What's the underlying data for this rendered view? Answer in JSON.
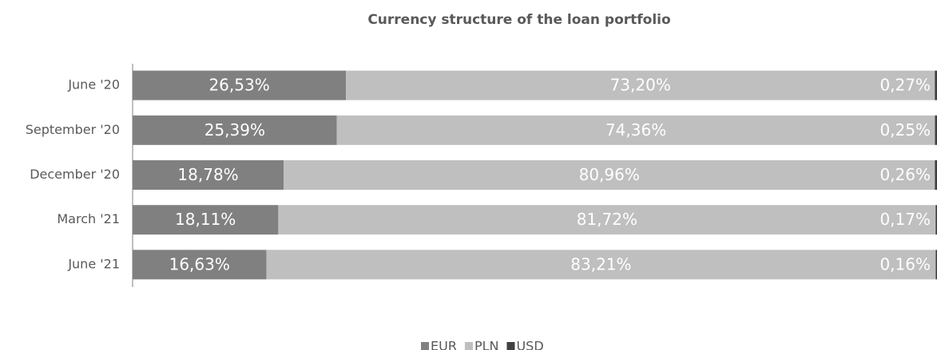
{
  "chart_data": {
    "type": "stacked-barh",
    "title": "Currency structure of the loan portfolio",
    "categories": [
      "June '20",
      "September '20",
      "December '20",
      "March '21",
      "June '21"
    ],
    "series": [
      {
        "name": "EUR",
        "color": "#808080",
        "values": [
          26.53,
          25.39,
          18.78,
          18.11,
          16.63
        ],
        "value_labels": [
          "26,53%",
          "25,39%",
          "18,78%",
          "18,11%",
          "16,63%"
        ]
      },
      {
        "name": "PLN",
        "color": "#bfbfbf",
        "values": [
          73.2,
          74.36,
          80.96,
          81.72,
          83.21
        ],
        "value_labels": [
          "73,20%",
          "74,36%",
          "80,96%",
          "81,72%",
          "83,21%"
        ]
      },
      {
        "name": "USD",
        "color": "#404040",
        "values": [
          0.27,
          0.25,
          0.26,
          0.17,
          0.16
        ],
        "value_labels": [
          "0,27%",
          "0,25%",
          "0,26%",
          "0,17%",
          "0,16%"
        ]
      }
    ],
    "xlim": [
      0,
      100
    ],
    "legend": "bottom"
  }
}
